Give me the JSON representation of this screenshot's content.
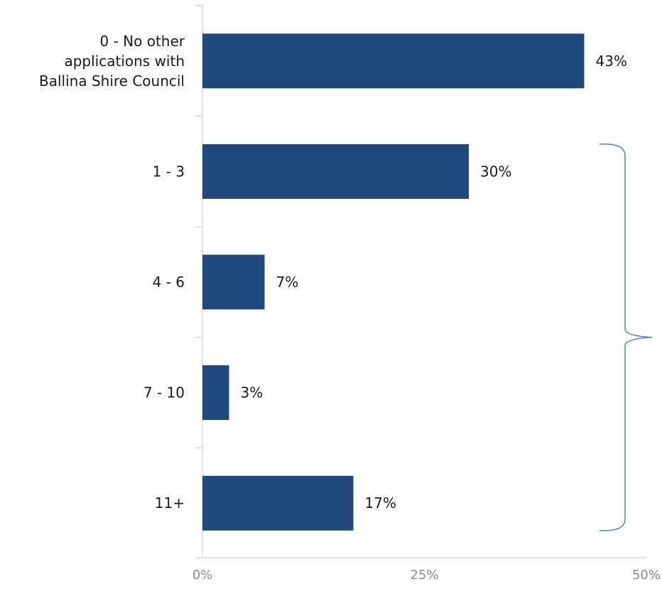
{
  "chart_data": {
    "type": "bar",
    "orientation": "horizontal",
    "categories": [
      [
        "0 - No other",
        "applications with",
        "Ballina Shire Council"
      ],
      [
        "1 - 3"
      ],
      [
        "4 - 6"
      ],
      [
        "7 - 10"
      ],
      [
        "11+"
      ]
    ],
    "values": [
      43,
      30,
      7,
      3,
      17
    ],
    "data_labels": [
      "43%",
      "30%",
      "7%",
      "3%",
      "17%"
    ],
    "xlim": [
      0,
      50
    ],
    "x_ticks": [
      0,
      25,
      50
    ],
    "x_tick_labels": [
      "0%",
      "25%",
      "50%"
    ],
    "grid": false,
    "legend": "none",
    "annotation": "brace spanning categories 1 - 3 through 11+",
    "colors": {
      "bar": "#1f497d",
      "axis": "#d9d9d9",
      "brace": "#4f81bd",
      "label_text": "#1a1a1a",
      "tick_text": "#8c8c8c"
    }
  }
}
